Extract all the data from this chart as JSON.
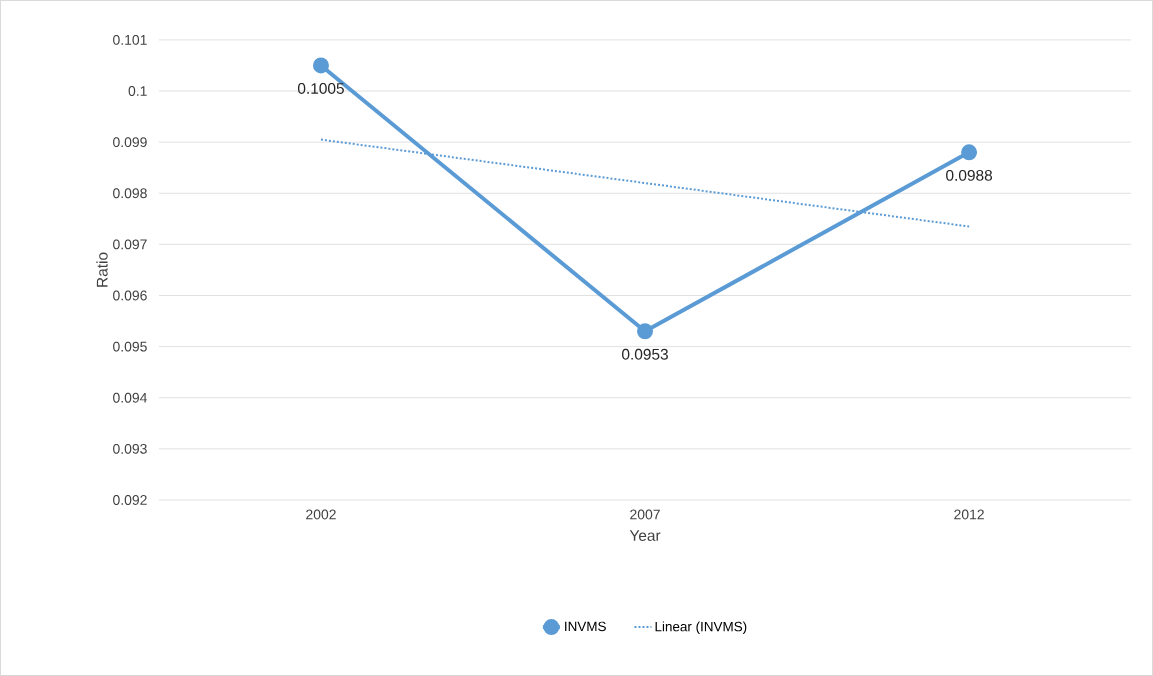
{
  "chart_data": {
    "type": "line",
    "xlabel": "Year",
    "ylabel": "Ratio",
    "categories": [
      "2002",
      "2007",
      "2012"
    ],
    "series": [
      {
        "name": "INVMS",
        "color": "#5b9bd5",
        "values": [
          0.1005,
          0.0953,
          0.0988
        ],
        "marker": "circle",
        "line_style": "solid",
        "value_labels": [
          "0.1005",
          "0.0953",
          "0.0988"
        ]
      },
      {
        "name": "Linear (INVMS)",
        "color": "#5b9bd5",
        "values": [
          0.09905,
          0.0982,
          0.09735
        ],
        "marker": "none",
        "line_style": "dotted"
      }
    ],
    "ylim": [
      0.092,
      0.101
    ],
    "yticks": [
      0.092,
      0.093,
      0.094,
      0.095,
      0.096,
      0.097,
      0.098,
      0.099,
      0.1,
      0.101
    ],
    "grid": "y",
    "legend": "bottom"
  }
}
